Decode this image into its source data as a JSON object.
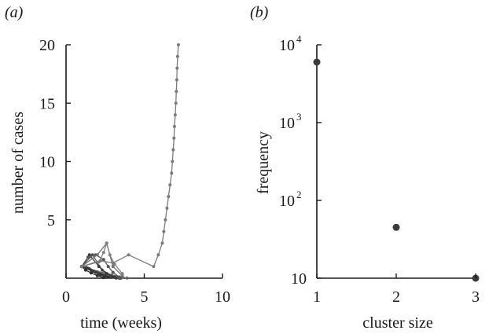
{
  "chart_data": [
    {
      "panel": "(a)",
      "type": "line",
      "xlabel": "time (weeks)",
      "ylabel": "number of cases",
      "xlim": [
        0,
        10
      ],
      "ylim": [
        0,
        20
      ],
      "xticks": [
        {
          "value": 0,
          "label": "0"
        },
        {
          "value": 5,
          "label": "5"
        },
        {
          "value": 10,
          "label": "10"
        }
      ],
      "yticks": [
        {
          "value": 5,
          "label": "5"
        },
        {
          "value": 10,
          "label": "10"
        },
        {
          "value": 15,
          "label": "15"
        },
        {
          "value": 20,
          "label": "20"
        }
      ],
      "series": [
        {
          "color": "#777777",
          "points": [
            [
              1.0,
              1
            ],
            [
              2.4,
              0.45
            ],
            [
              3.6,
              0.08
            ]
          ]
        },
        {
          "color": "#6f6f6f",
          "points": [
            [
              1.0,
              1
            ],
            [
              2.2,
              0.35
            ],
            [
              3.3,
              0.05
            ]
          ]
        },
        {
          "color": "#666666",
          "points": [
            [
              1.0,
              1
            ],
            [
              2.0,
              0.55
            ],
            [
              2.9,
              0.2
            ],
            [
              3.9,
              0.02
            ]
          ]
        },
        {
          "color": "#5a5a5a",
          "points": [
            [
              1.0,
              1
            ],
            [
              1.8,
              0.6
            ],
            [
              2.6,
              0.15
            ],
            [
              3.4,
              0.0
            ]
          ]
        },
        {
          "color": "#4f4f4f",
          "points": [
            [
              1.0,
              1
            ],
            [
              1.6,
              0.7
            ],
            [
              2.3,
              0.3
            ],
            [
              3.0,
              0.1
            ]
          ]
        },
        {
          "color": "#444444",
          "points": [
            [
              1.0,
              1
            ],
            [
              1.5,
              0.8
            ],
            [
              2.1,
              0.4
            ],
            [
              2.8,
              0.12
            ],
            [
              3.5,
              0.0
            ]
          ]
        },
        {
          "color": "#3a3a3a",
          "points": [
            [
              1.0,
              1
            ],
            [
              1.4,
              0.85
            ],
            [
              1.9,
              0.5
            ],
            [
              2.5,
              0.2
            ],
            [
              3.2,
              0.02
            ]
          ]
        },
        {
          "color": "#333333",
          "points": [
            [
              1.0,
              1
            ],
            [
              1.3,
              0.9
            ],
            [
              1.7,
              0.6
            ],
            [
              2.2,
              0.3
            ],
            [
              2.7,
              0.08
            ]
          ]
        },
        {
          "color": "#2d2d2d",
          "points": [
            [
              1.0,
              1
            ],
            [
              1.25,
              0.7
            ],
            [
              1.6,
              0.45
            ],
            [
              2.0,
              0.22
            ],
            [
              2.4,
              0.05
            ]
          ]
        },
        {
          "color": "#555555",
          "points": [
            [
              1.0,
              1
            ],
            [
              1.7,
              2.0
            ],
            [
              2.3,
              0.7
            ],
            [
              2.9,
              0.25
            ],
            [
              3.5,
              0.03
            ]
          ]
        },
        {
          "color": "#3a3a3a",
          "points": [
            [
              1.0,
              1
            ],
            [
              1.5,
              2.0
            ],
            [
              2.1,
              1.0
            ],
            [
              2.6,
              0.4
            ],
            [
              3.1,
              0.1
            ]
          ]
        },
        {
          "color": "#555555",
          "points": [
            [
              1.0,
              1
            ],
            [
              1.4,
              1.8
            ],
            [
              1.9,
              2.0
            ],
            [
              2.4,
              1.6
            ],
            [
              2.7,
              1.0
            ],
            [
              3.0,
              0.5
            ],
            [
              3.4,
              0.1
            ]
          ]
        },
        {
          "color": "#707070",
          "points": [
            [
              1.0,
              1
            ],
            [
              2.0,
              2.0
            ],
            [
              2.6,
              3.0
            ],
            [
              3.0,
              1.0
            ],
            [
              3.6,
              0.2
            ]
          ]
        },
        {
          "color": "#808080",
          "points": [
            [
              1.0,
              1
            ],
            [
              2.1,
              1.4
            ],
            [
              2.4,
              2.2
            ],
            [
              2.6,
              3.0
            ],
            [
              2.8,
              2.0
            ],
            [
              3.1,
              1.2
            ],
            [
              3.6,
              0.4
            ]
          ]
        },
        {
          "color": "#7a7a7a",
          "points": [
            [
              1.0,
              1
            ],
            [
              2.2,
              1.5
            ],
            [
              3.0,
              1.3
            ],
            [
              4.0,
              2.0
            ],
            [
              5.6,
              1.0
            ],
            [
              5.9,
              2.0
            ],
            [
              6.15,
              3.0
            ],
            [
              6.25,
              4.0
            ],
            [
              6.35,
              5.0
            ],
            [
              6.45,
              6.0
            ],
            [
              6.55,
              7.0
            ],
            [
              6.65,
              8.0
            ],
            [
              6.75,
              9.0
            ],
            [
              6.8,
              10.0
            ],
            [
              6.85,
              11.0
            ],
            [
              6.9,
              12.0
            ],
            [
              6.93,
              13.0
            ],
            [
              6.98,
              14.0
            ],
            [
              7.02,
              15.0
            ],
            [
              7.05,
              16.0
            ],
            [
              7.08,
              17.0
            ],
            [
              7.1,
              18.0
            ],
            [
              7.13,
              19.0
            ],
            [
              7.18,
              20.0
            ]
          ]
        }
      ]
    },
    {
      "panel": "(b)",
      "type": "scatter",
      "xlabel": "cluster size",
      "ylabel": "frequency",
      "xlim": [
        1,
        3
      ],
      "ylim": [
        10,
        10000
      ],
      "yscale": "log",
      "x": [
        1,
        2,
        3
      ],
      "y": [
        6000,
        45,
        10
      ],
      "xticks": [
        {
          "value": 1,
          "label": "1"
        },
        {
          "value": 2,
          "label": "2"
        },
        {
          "value": 3,
          "label": "3"
        }
      ],
      "yticks": [
        {
          "value": 10,
          "base": "10",
          "exp": ""
        },
        {
          "value": 100,
          "base": "10",
          "exp": "2"
        },
        {
          "value": 1000,
          "base": "10",
          "exp": "3"
        },
        {
          "value": 10000,
          "base": "10",
          "exp": "4"
        }
      ]
    }
  ]
}
